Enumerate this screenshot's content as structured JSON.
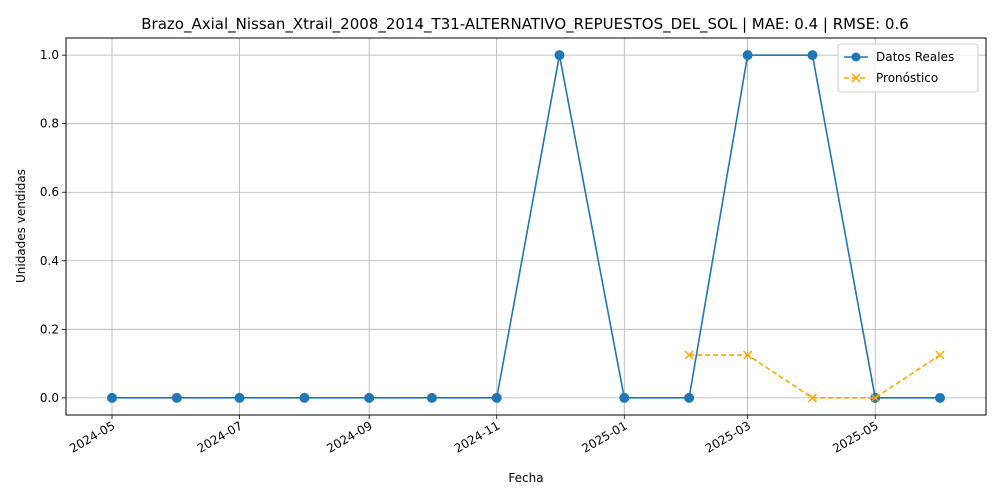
{
  "chart_data": {
    "type": "line",
    "title": "Brazo_Axial_Nissan_Xtrail_2008_2014_T31-ALTERNATIVO_REPUESTOS_DEL_SOL | MAE: 0.4 | RMSE: 0.6",
    "xlabel": "Fecha",
    "ylabel": "Unidades vendidas",
    "xlim": [
      "2024-04-09",
      "2025-06-23"
    ],
    "ylim": [
      -0.05,
      1.05
    ],
    "x_ticks": [
      "2024-05-01",
      "2024-07-01",
      "2024-09-01",
      "2024-11-01",
      "2025-01-01",
      "2025-03-01",
      "2025-05-01"
    ],
    "x_tick_labels": [
      "2024-05",
      "2024-07",
      "2024-09",
      "2024-11",
      "2025-01",
      "2025-03",
      "2025-05"
    ],
    "y_ticks": [
      0.0,
      0.2,
      0.4,
      0.6,
      0.8,
      1.0
    ],
    "y_tick_labels": [
      "0.0",
      "0.2",
      "0.4",
      "0.6",
      "0.8",
      "1.0"
    ],
    "grid": true,
    "legend_position": "top-right",
    "series": [
      {
        "name": "Datos Reales",
        "color": "#1f77b4",
        "style": "solid",
        "marker": "circle",
        "x": [
          "2024-05-01",
          "2024-06-01",
          "2024-07-01",
          "2024-08-01",
          "2024-09-01",
          "2024-10-01",
          "2024-11-01",
          "2024-12-01",
          "2025-01-01",
          "2025-02-01",
          "2025-03-01",
          "2025-04-01",
          "2025-05-01",
          "2025-06-01"
        ],
        "y": [
          0,
          0,
          0,
          0,
          0,
          0,
          0,
          1,
          0,
          0,
          1,
          1,
          0,
          0
        ]
      },
      {
        "name": "Pronóstico",
        "color": "#ffa500",
        "style": "dashed",
        "marker": "x",
        "x": [
          "2025-02-01",
          "2025-03-01",
          "2025-04-01",
          "2025-05-01",
          "2025-06-01"
        ],
        "y": [
          0.125,
          0.125,
          0.0,
          0.0,
          0.125
        ]
      }
    ]
  }
}
